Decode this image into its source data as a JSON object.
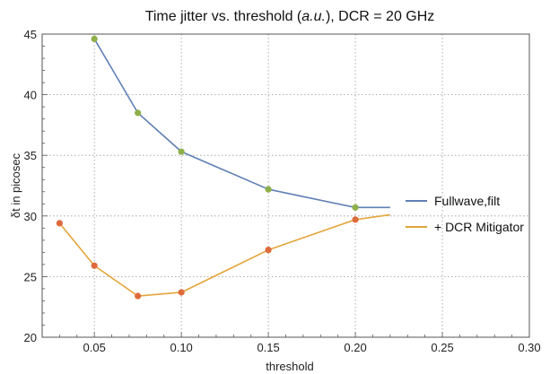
{
  "chart_data": {
    "type": "line",
    "title": {
      "prefix": "Time jitter vs. threshold (",
      "italic": "a.u.",
      "suffix": "), DCR = 20 GHz"
    },
    "xlabel": "threshold",
    "ylabel": "δt in picosec",
    "xlim": [
      0.02,
      0.3
    ],
    "ylim": [
      20,
      45
    ],
    "x_ticks": [
      0.05,
      0.1,
      0.15,
      0.2,
      0.25,
      0.3
    ],
    "x_tick_labels": [
      "0.05",
      "0.10",
      "0.15",
      "0.20",
      "0.25",
      "0.30"
    ],
    "x_minor_ticks": [
      0.03,
      0.04,
      0.06,
      0.07,
      0.08,
      0.09,
      0.11,
      0.12,
      0.13,
      0.14,
      0.16,
      0.17,
      0.18,
      0.19,
      0.21,
      0.22,
      0.23,
      0.24,
      0.26,
      0.27,
      0.28,
      0.29
    ],
    "y_ticks": [
      20,
      25,
      30,
      35,
      40,
      45
    ],
    "y_tick_labels": [
      "20",
      "25",
      "30",
      "35",
      "40",
      "45"
    ],
    "y_minor_ticks": [
      21,
      22,
      23,
      24,
      26,
      27,
      28,
      29,
      31,
      32,
      33,
      34,
      36,
      37,
      38,
      39,
      41,
      42,
      43,
      44
    ],
    "grid": true,
    "legend_position": "right",
    "series": [
      {
        "name": "Fullwave,filt",
        "line_color": "#5f7fb4",
        "marker_color": "#8fb04a",
        "marker_x": [
          0.05,
          0.075,
          0.1,
          0.15,
          0.2
        ],
        "marker_y": [
          44.6,
          38.5,
          35.3,
          32.2,
          30.7
        ],
        "line_x": [
          0.05,
          0.075,
          0.1,
          0.15,
          0.2,
          0.22
        ],
        "line_y": [
          44.6,
          38.5,
          35.3,
          32.2,
          30.7,
          30.7
        ]
      },
      {
        "name": "+ DCR Mitigator",
        "line_color": "#e3a53a",
        "marker_color": "#de6b3c",
        "marker_x": [
          0.03,
          0.05,
          0.075,
          0.1,
          0.15,
          0.2
        ],
        "marker_y": [
          29.4,
          25.9,
          23.4,
          23.7,
          27.2,
          29.7
        ],
        "line_x": [
          0.03,
          0.05,
          0.075,
          0.1,
          0.15,
          0.2,
          0.22
        ],
        "line_y": [
          29.4,
          25.9,
          23.4,
          23.7,
          27.2,
          29.7,
          30.1
        ]
      }
    ]
  }
}
